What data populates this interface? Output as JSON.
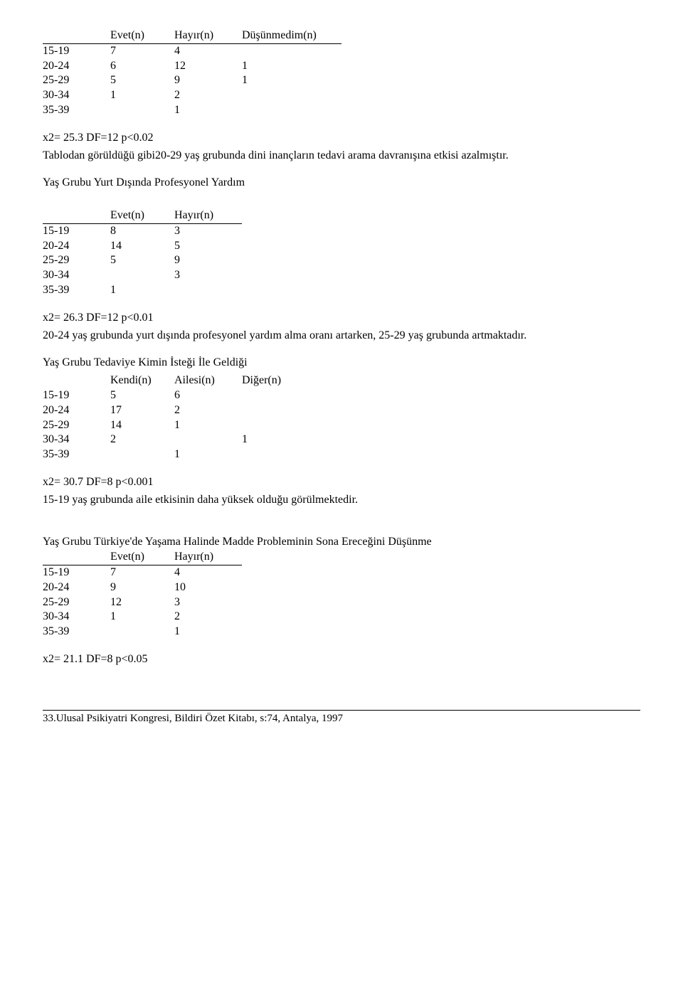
{
  "table1": {
    "headers": [
      "",
      "Evet(n)",
      "Hayır(n)",
      "Düşünmedim(n)"
    ],
    "rows": [
      [
        "15-19",
        "7",
        "4",
        ""
      ],
      [
        "20-24",
        "6",
        "12",
        "1"
      ],
      [
        "25-29",
        "5",
        "9",
        "1"
      ],
      [
        "30-34",
        "1",
        "2",
        ""
      ],
      [
        "35-39",
        "",
        "1",
        ""
      ]
    ],
    "stat": "x2= 25.3   DF=12  p<0.02",
    "note": "Tablodan görüldüğü gibi20-29 yaş grubunda dini inançların tedavi arama davranışına etkisi azalmıştır."
  },
  "table2": {
    "title": "Yaş Grubu Yurt Dışında Profesyonel Yardım",
    "headers": [
      "",
      "Evet(n)",
      "Hayır(n)"
    ],
    "rows": [
      [
        "15-19",
        "8",
        "3"
      ],
      [
        "20-24",
        "14",
        "5"
      ],
      [
        "25-29",
        "5",
        "9"
      ],
      [
        "30-34",
        "",
        "3"
      ],
      [
        "35-39",
        "1",
        ""
      ]
    ],
    "stat": "x2= 26.3   DF=12   p<0.01",
    "note": "20-24 yaş grubunda yurt dışında profesyonel yardım alma oranı artarken, 25-29 yaş grubunda artmaktadır."
  },
  "table3": {
    "title1": "Yaş Grubu Tedaviye Kimin İsteği İle Geldiği",
    "headers": [
      "",
      "Kendi(n)",
      "Ailesi(n)",
      "Diğer(n)"
    ],
    "rows": [
      [
        "15-19",
        "5",
        "6",
        ""
      ],
      [
        "20-24",
        "17",
        "2",
        ""
      ],
      [
        "25-29",
        "14",
        "1",
        ""
      ],
      [
        "30-34",
        "2",
        "",
        "1"
      ],
      [
        "35-39",
        "",
        "1",
        ""
      ]
    ],
    "stat": "x2= 30.7   DF=8   p<0.001",
    "note": "15-19 yaş grubunda aile etkisinin daha yüksek olduğu görülmektedir."
  },
  "table4": {
    "title": "Yaş Grubu Türkiye'de Yaşama Halinde Madde Probleminin Sona Ereceğini Düşünme",
    "headers": [
      "",
      "Evet(n)",
      "Hayır(n)"
    ],
    "rows": [
      [
        "15-19",
        "7",
        "4"
      ],
      [
        "20-24",
        "9",
        "10"
      ],
      [
        "25-29",
        "12",
        "3"
      ],
      [
        "30-34",
        "1",
        "2"
      ],
      [
        "35-39",
        "",
        "1"
      ]
    ],
    "stat": "x2= 21.1   DF=8   p<0.05"
  },
  "footer": "33.Ulusal Psikiyatri Kongresi, Bildiri Özet Kitabı, s:74, Antalya, 1997"
}
